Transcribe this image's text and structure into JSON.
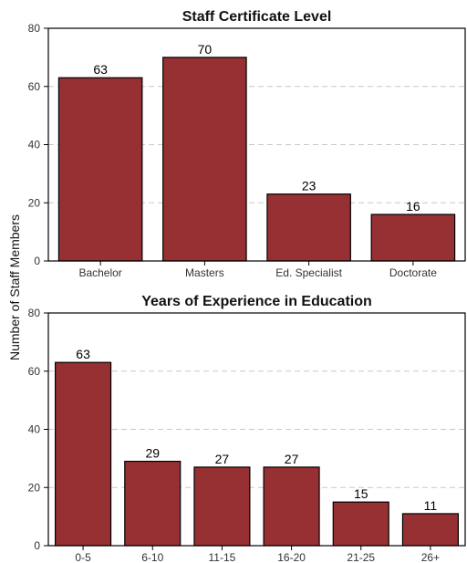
{
  "shared_ylabel": "Number of Staff Members",
  "colors": {
    "bar": "#963033",
    "bar_edge": "#000000",
    "grid": "#c8c8c8"
  },
  "chart_data": [
    {
      "type": "bar",
      "title": "Staff Certificate Level",
      "categories": [
        "Bachelor",
        "Masters",
        "Ed. Specialist",
        "Doctorate"
      ],
      "values": [
        63,
        70,
        23,
        16
      ],
      "data_labels": [
        "63",
        "70",
        "23",
        "16"
      ],
      "ylim": [
        0,
        80
      ],
      "yticks": [
        0,
        20,
        40,
        60,
        80
      ],
      "ytick_labels": [
        "0",
        "20",
        "40",
        "60",
        "80"
      ],
      "grid": "horizontal dashed"
    },
    {
      "type": "bar",
      "title": "Years of Experience in Education",
      "categories": [
        "0-5",
        "6-10",
        "11-15",
        "16-20",
        "21-25",
        "26+"
      ],
      "values": [
        63,
        29,
        27,
        27,
        15,
        11
      ],
      "data_labels": [
        "63",
        "29",
        "27",
        "27",
        "15",
        "11"
      ],
      "ylim": [
        0,
        80
      ],
      "yticks": [
        0,
        20,
        40,
        60,
        80
      ],
      "ytick_labels": [
        "0",
        "20",
        "40",
        "60",
        "80"
      ],
      "grid": "horizontal dashed"
    }
  ]
}
